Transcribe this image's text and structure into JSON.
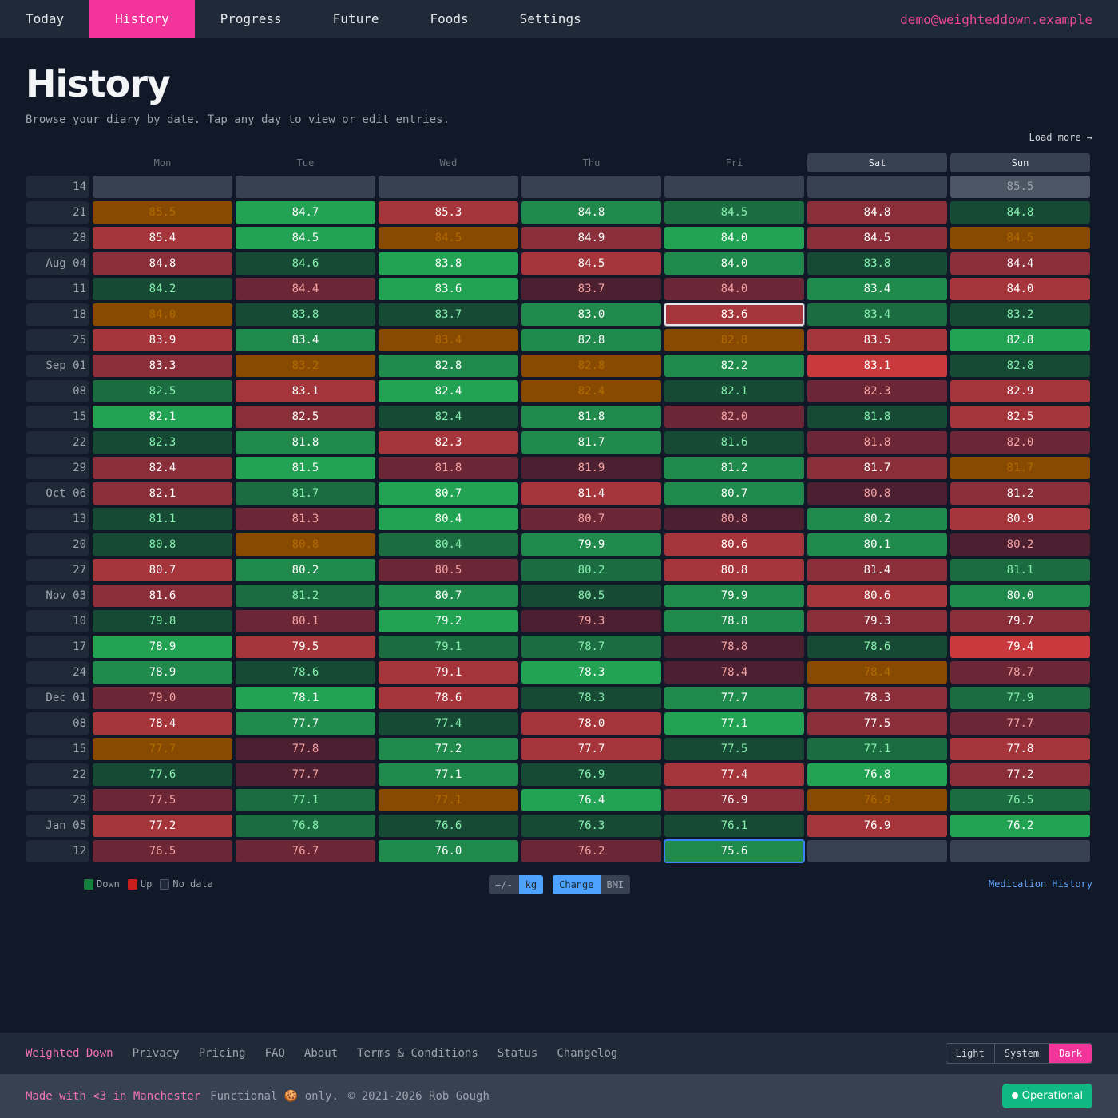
{
  "nav": {
    "items": [
      "Today",
      "History",
      "Progress",
      "Future",
      "Foods",
      "Settings"
    ],
    "active": 1,
    "email": "demo@weighteddown.example"
  },
  "page": {
    "title": "History",
    "subtitle": "Browse your diary by date. Tap any day to view or edit entries.",
    "load_more": "Load more →"
  },
  "days": [
    "Mon",
    "Tue",
    "Wed",
    "Thu",
    "Fri",
    "Sat",
    "Sun"
  ],
  "weeks": [
    {
      "label": "14",
      "cells": [
        [
          "",
          "e"
        ],
        [
          "",
          "e"
        ],
        [
          "",
          "e"
        ],
        [
          "",
          "e"
        ],
        [
          "",
          "e"
        ],
        [
          "",
          "e"
        ],
        [
          "85.5",
          "m"
        ]
      ]
    },
    {
      "label": "21",
      "cells": [
        [
          "85.5",
          "o"
        ],
        [
          "84.7",
          "g1"
        ],
        [
          "85.3",
          "r2"
        ],
        [
          "84.8",
          "g2"
        ],
        [
          "84.5",
          "g3"
        ],
        [
          "84.8",
          "r3"
        ],
        [
          "84.8",
          "g4"
        ]
      ]
    },
    {
      "label": "28",
      "cells": [
        [
          "85.4",
          "r2"
        ],
        [
          "84.5",
          "g1"
        ],
        [
          "84.5",
          "o"
        ],
        [
          "84.9",
          "r3"
        ],
        [
          "84.0",
          "g1"
        ],
        [
          "84.5",
          "r3"
        ],
        [
          "84.5",
          "o"
        ]
      ]
    },
    {
      "label": "Aug 04",
      "cells": [
        [
          "84.8",
          "r3"
        ],
        [
          "84.6",
          "g4"
        ],
        [
          "83.8",
          "g1"
        ],
        [
          "84.5",
          "r2"
        ],
        [
          "84.0",
          "g2"
        ],
        [
          "83.8",
          "g4"
        ],
        [
          "84.4",
          "r3"
        ]
      ]
    },
    {
      "label": "11",
      "cells": [
        [
          "84.2",
          "g4"
        ],
        [
          "84.4",
          "r4"
        ],
        [
          "83.6",
          "g1"
        ],
        [
          "83.7",
          "r5"
        ],
        [
          "84.0",
          "r4"
        ],
        [
          "83.4",
          "g2"
        ],
        [
          "84.0",
          "r2"
        ]
      ]
    },
    {
      "label": "18",
      "cells": [
        [
          "84.0",
          "o"
        ],
        [
          "83.8",
          "g4"
        ],
        [
          "83.7",
          "g4"
        ],
        [
          "83.0",
          "g2"
        ],
        [
          "83.6",
          "r2 selw"
        ],
        [
          "83.4",
          "g3"
        ],
        [
          "83.2",
          "g4"
        ]
      ]
    },
    {
      "label": "25",
      "cells": [
        [
          "83.9",
          "r2"
        ],
        [
          "83.4",
          "g2"
        ],
        [
          "83.4",
          "o"
        ],
        [
          "82.8",
          "g2"
        ],
        [
          "82.8",
          "o"
        ],
        [
          "83.5",
          "r2"
        ],
        [
          "82.8",
          "g1"
        ]
      ]
    },
    {
      "label": "Sep 01",
      "cells": [
        [
          "83.3",
          "r3"
        ],
        [
          "83.2",
          "o"
        ],
        [
          "82.8",
          "g2"
        ],
        [
          "82.8",
          "o"
        ],
        [
          "82.2",
          "g2"
        ],
        [
          "83.1",
          "r1"
        ],
        [
          "82.8",
          "g4"
        ]
      ]
    },
    {
      "label": "08",
      "cells": [
        [
          "82.5",
          "g3"
        ],
        [
          "83.1",
          "r2"
        ],
        [
          "82.4",
          "g1"
        ],
        [
          "82.4",
          "o"
        ],
        [
          "82.1",
          "g4"
        ],
        [
          "82.3",
          "r4"
        ],
        [
          "82.9",
          "r2"
        ]
      ]
    },
    {
      "label": "15",
      "cells": [
        [
          "82.1",
          "g1"
        ],
        [
          "82.5",
          "r3"
        ],
        [
          "82.4",
          "g4"
        ],
        [
          "81.8",
          "g2"
        ],
        [
          "82.0",
          "r4"
        ],
        [
          "81.8",
          "g4"
        ],
        [
          "82.5",
          "r2"
        ]
      ]
    },
    {
      "label": "22",
      "cells": [
        [
          "82.3",
          "g4"
        ],
        [
          "81.8",
          "g2"
        ],
        [
          "82.3",
          "r2"
        ],
        [
          "81.7",
          "g2"
        ],
        [
          "81.6",
          "g4"
        ],
        [
          "81.8",
          "r4"
        ],
        [
          "82.0",
          "r4"
        ]
      ]
    },
    {
      "label": "29",
      "cells": [
        [
          "82.4",
          "r3"
        ],
        [
          "81.5",
          "g1"
        ],
        [
          "81.8",
          "r4"
        ],
        [
          "81.9",
          "r5"
        ],
        [
          "81.2",
          "g2"
        ],
        [
          "81.7",
          "r3"
        ],
        [
          "81.7",
          "o"
        ]
      ]
    },
    {
      "label": "Oct 06",
      "cells": [
        [
          "82.1",
          "r3"
        ],
        [
          "81.7",
          "g3"
        ],
        [
          "80.7",
          "g1"
        ],
        [
          "81.4",
          "r2"
        ],
        [
          "80.7",
          "g2"
        ],
        [
          "80.8",
          "r5"
        ],
        [
          "81.2",
          "r3"
        ]
      ]
    },
    {
      "label": "13",
      "cells": [
        [
          "81.1",
          "g4"
        ],
        [
          "81.3",
          "r4"
        ],
        [
          "80.4",
          "g1"
        ],
        [
          "80.7",
          "r4"
        ],
        [
          "80.8",
          "r5"
        ],
        [
          "80.2",
          "g2"
        ],
        [
          "80.9",
          "r2"
        ]
      ]
    },
    {
      "label": "20",
      "cells": [
        [
          "80.8",
          "g4"
        ],
        [
          "80.8",
          "o"
        ],
        [
          "80.4",
          "g3"
        ],
        [
          "79.9",
          "g2"
        ],
        [
          "80.6",
          "r2"
        ],
        [
          "80.1",
          "g2"
        ],
        [
          "80.2",
          "r5"
        ]
      ]
    },
    {
      "label": "27",
      "cells": [
        [
          "80.7",
          "r2"
        ],
        [
          "80.2",
          "g2"
        ],
        [
          "80.5",
          "r4"
        ],
        [
          "80.2",
          "g3"
        ],
        [
          "80.8",
          "r2"
        ],
        [
          "81.4",
          "r3"
        ],
        [
          "81.1",
          "g3"
        ]
      ]
    },
    {
      "label": "Nov 03",
      "cells": [
        [
          "81.6",
          "r3"
        ],
        [
          "81.2",
          "g3"
        ],
        [
          "80.7",
          "g2"
        ],
        [
          "80.5",
          "g4"
        ],
        [
          "79.9",
          "g2"
        ],
        [
          "80.6",
          "r2"
        ],
        [
          "80.0",
          "g2"
        ]
      ]
    },
    {
      "label": "10",
      "cells": [
        [
          "79.8",
          "g4"
        ],
        [
          "80.1",
          "r4"
        ],
        [
          "79.2",
          "g1"
        ],
        [
          "79.3",
          "r5"
        ],
        [
          "78.8",
          "g2"
        ],
        [
          "79.3",
          "r3"
        ],
        [
          "79.7",
          "r3"
        ]
      ]
    },
    {
      "label": "17",
      "cells": [
        [
          "78.9",
          "g1"
        ],
        [
          "79.5",
          "r2"
        ],
        [
          "79.1",
          "g3"
        ],
        [
          "78.7",
          "g3"
        ],
        [
          "78.8",
          "r5"
        ],
        [
          "78.6",
          "g4"
        ],
        [
          "79.4",
          "r1"
        ]
      ]
    },
    {
      "label": "24",
      "cells": [
        [
          "78.9",
          "g2"
        ],
        [
          "78.6",
          "g4"
        ],
        [
          "79.1",
          "r2"
        ],
        [
          "78.3",
          "g1"
        ],
        [
          "78.4",
          "r5"
        ],
        [
          "78.4",
          "o"
        ],
        [
          "78.7",
          "r4"
        ]
      ]
    },
    {
      "label": "Dec 01",
      "cells": [
        [
          "79.0",
          "r4"
        ],
        [
          "78.1",
          "g1"
        ],
        [
          "78.6",
          "r2"
        ],
        [
          "78.3",
          "g4"
        ],
        [
          "77.7",
          "g2"
        ],
        [
          "78.3",
          "r3"
        ],
        [
          "77.9",
          "g3"
        ]
      ]
    },
    {
      "label": "08",
      "cells": [
        [
          "78.4",
          "r2"
        ],
        [
          "77.7",
          "g2"
        ],
        [
          "77.4",
          "g4"
        ],
        [
          "78.0",
          "r2"
        ],
        [
          "77.1",
          "g1"
        ],
        [
          "77.5",
          "r3"
        ],
        [
          "77.7",
          "r4"
        ]
      ]
    },
    {
      "label": "15",
      "cells": [
        [
          "77.7",
          "o"
        ],
        [
          "77.8",
          "r5"
        ],
        [
          "77.2",
          "g2"
        ],
        [
          "77.7",
          "r2"
        ],
        [
          "77.5",
          "g4"
        ],
        [
          "77.1",
          "g3"
        ],
        [
          "77.8",
          "r2"
        ]
      ]
    },
    {
      "label": "22",
      "cells": [
        [
          "77.6",
          "g4"
        ],
        [
          "77.7",
          "r5"
        ],
        [
          "77.1",
          "g2"
        ],
        [
          "76.9",
          "g4"
        ],
        [
          "77.4",
          "r2"
        ],
        [
          "76.8",
          "g1"
        ],
        [
          "77.2",
          "r3"
        ]
      ]
    },
    {
      "label": "29",
      "cells": [
        [
          "77.5",
          "r4"
        ],
        [
          "77.1",
          "g3"
        ],
        [
          "77.1",
          "o"
        ],
        [
          "76.4",
          "g1"
        ],
        [
          "76.9",
          "r3"
        ],
        [
          "76.9",
          "o"
        ],
        [
          "76.5",
          "g3"
        ]
      ]
    },
    {
      "label": "Jan 05",
      "cells": [
        [
          "77.2",
          "r2"
        ],
        [
          "76.8",
          "g3"
        ],
        [
          "76.6",
          "g4"
        ],
        [
          "76.3",
          "g4"
        ],
        [
          "76.1",
          "g4"
        ],
        [
          "76.9",
          "r2"
        ],
        [
          "76.2",
          "g1"
        ]
      ]
    },
    {
      "label": "12",
      "cells": [
        [
          "76.5",
          "r4"
        ],
        [
          "76.7",
          "r4"
        ],
        [
          "76.0",
          "g2"
        ],
        [
          "76.2",
          "r4"
        ],
        [
          "75.6",
          "g2 selb"
        ],
        [
          "",
          "e"
        ],
        [
          "",
          "e"
        ]
      ]
    }
  ],
  "legend": {
    "down": "Down",
    "up": "Up",
    "nodata": "No data",
    "down_color": "#15803d",
    "up_color": "#c81e1e"
  },
  "toggles": {
    "unit": [
      "+/-",
      "kg"
    ],
    "mode": [
      "Change",
      "BMI"
    ]
  },
  "medication_link": "Medication History",
  "footer": {
    "brand": "Weighted Down",
    "links": [
      "Privacy",
      "Pricing",
      "FAQ",
      "About",
      "Terms & Conditions",
      "Status",
      "Changelog"
    ],
    "theme": [
      "Light",
      "System",
      "Dark"
    ],
    "made": "Made with <3 in Manchester",
    "cookie": "Functional 🍪 only.",
    "copyright": "© 2021-2026 Rob Gough",
    "status": "Operational"
  }
}
